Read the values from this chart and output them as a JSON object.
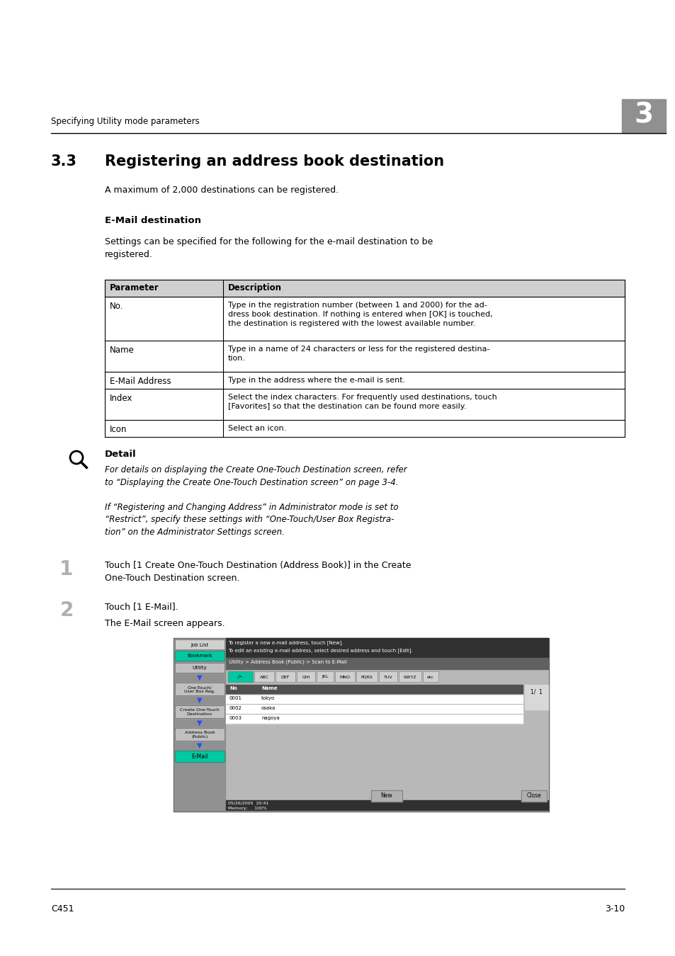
{
  "bg_color": "#ffffff",
  "header_text": "Specifying Utility mode parameters",
  "header_chapter": "3",
  "section_number": "3.3",
  "section_title": "Registering an address book destination",
  "intro_text": "A maximum of 2,000 destinations can be registered.",
  "subsection_title": "E-Mail destination",
  "subsection_intro": "Settings can be specified for the following for the e-mail destination to be\nregistered.",
  "table_header": [
    "Parameter",
    "Description"
  ],
  "table_rows": [
    [
      "No.",
      "Type in the registration number (between 1 and 2000) for the ad-\ndress book destination. If nothing is entered when [OK] is touched,\nthe destination is registered with the lowest available number."
    ],
    [
      "Name",
      "Type in a name of 24 characters or less for the registered destina-\ntion."
    ],
    [
      "E-Mail Address",
      "Type in the address where the e-mail is sent."
    ],
    [
      "Index",
      "Select the index characters. For frequently used destinations, touch\n[Favorites] so that the destination can be found more easily."
    ],
    [
      "Icon",
      "Select an icon."
    ]
  ],
  "detail_title": "Detail",
  "detail_text1": "For details on displaying the Create One-Touch Destination screen, refer\nto “Displaying the Create One-Touch Destination screen” on page 3-4.",
  "detail_text2": "If “Registering and Changing Address” in Administrator mode is set to\n“Restrict”, specify these settings with “One-Touch/User Box Registra-\ntion” on the Administrator Settings screen.",
  "step1_num": "1",
  "step1_text": "Touch [1 Create One-Touch Destination (Address Book)] in the Create\nOne-Touch Destination screen.",
  "step2_num": "2",
  "step2_text": "Touch [1 E-Mail].",
  "step2_sub": "The E-Mail screen appears.",
  "footer_left": "C451",
  "footer_right": "3-10",
  "table_header_bg": "#d0d0d0",
  "table_border_color": "#000000",
  "chapter_box_bg": "#909090",
  "sidebar_teal": "#00c8a0",
  "sidebar_gray": "#b0b0b0",
  "sidebar_btn": "#c8c8c8",
  "screen_dark": "#404040",
  "screen_mid": "#808080",
  "screen_light": "#c0c0c0"
}
